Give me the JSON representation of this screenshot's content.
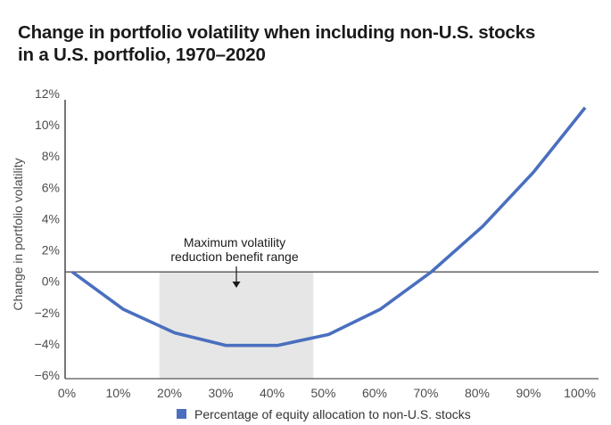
{
  "title_line1": "Change in portfolio volatility when including non-U.S. stocks",
  "title_line2": "in a U.S. portfolio, 1970–2020",
  "chart_data": {
    "type": "line",
    "title": "Change in portfolio volatility when including non-U.S. stocks in a U.S. portfolio, 1970–2020",
    "xlabel": "Percentage of equity allocation to non-U.S. stocks",
    "ylabel": "Change in portfolio volatility",
    "x": [
      0,
      10,
      20,
      30,
      40,
      50,
      60,
      70,
      80,
      90,
      100
    ],
    "series": [
      {
        "name": "Percentage of equity allocation to non-U.S. stocks",
        "color": "#4a6fbf",
        "values": [
          0.6,
          -1.8,
          -3.3,
          -4.1,
          -4.1,
          -3.4,
          -1.8,
          0.6,
          3.5,
          7.0,
          11.1
        ]
      }
    ],
    "xlim": [
      0,
      100
    ],
    "ylim": [
      -6.2,
      12
    ],
    "x_ticks": [
      0,
      10,
      20,
      30,
      40,
      50,
      60,
      70,
      80,
      90,
      100
    ],
    "x_tick_labels": [
      "0%",
      "10%",
      "20%",
      "30%",
      "40%",
      "50%",
      "60%",
      "70%",
      "80%",
      "90%",
      "100%"
    ],
    "y_ticks": [
      12,
      10,
      8,
      6,
      4,
      2,
      0,
      -2,
      -4,
      -6
    ],
    "y_tick_labels": [
      "12%",
      "10%",
      "8%",
      "6%",
      "4%",
      "2%",
      "0%",
      "−2%",
      "−4%",
      "−6%"
    ],
    "reference_line": 0.6,
    "shaded_range": {
      "x_from": 17,
      "x_to": 47,
      "color": "#e6e6e6"
    },
    "annotation": {
      "lines": [
        "Maximum volatility",
        "reduction benefit range"
      ],
      "arrow_x": 32
    },
    "grid": false,
    "legend": {
      "position": "bottom-center",
      "entries": [
        "Percentage of equity allocation to non-U.S. stocks"
      ]
    }
  }
}
